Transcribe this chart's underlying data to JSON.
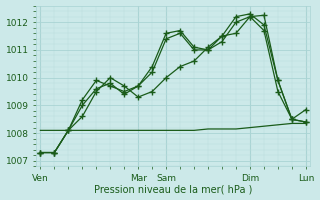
{
  "xlabel": "Pression niveau de la mer( hPa )",
  "ylim": [
    1006.8,
    1012.6
  ],
  "yticks": [
    1007,
    1008,
    1009,
    1010,
    1011,
    1012
  ],
  "background_color": "#cce9e9",
  "grid_major_color": "#aad4d4",
  "grid_minor_color": "#bbdddd",
  "line_color": "#1a5c1a",
  "text_color": "#1a5c1a",
  "n_points": 20,
  "day_tick_positions": [
    0,
    7,
    9,
    15,
    19
  ],
  "day_labels": [
    "Ven",
    "Mar",
    "Sam",
    "Dim",
    "Lun"
  ],
  "series1": [
    1007.3,
    1007.3,
    1008.1,
    1008.6,
    1009.5,
    1010.0,
    1009.7,
    1009.3,
    1009.5,
    1010.0,
    1010.4,
    1010.6,
    1011.1,
    1011.5,
    1011.6,
    1012.2,
    1012.25,
    1009.9,
    1008.5,
    1008.85
  ],
  "series2": [
    1007.3,
    1007.3,
    1008.1,
    1009.2,
    1009.9,
    1009.7,
    1009.5,
    1009.7,
    1010.4,
    1011.6,
    1011.7,
    1011.1,
    1011.0,
    1011.5,
    1012.2,
    1012.3,
    1011.9,
    1009.9,
    1008.5,
    1008.4
  ],
  "series3": [
    1007.3,
    1007.3,
    1008.1,
    1009.0,
    1009.6,
    1009.8,
    1009.4,
    1009.7,
    1010.2,
    1011.4,
    1011.6,
    1011.0,
    1011.0,
    1011.3,
    1012.0,
    1012.2,
    1011.7,
    1009.5,
    1008.5,
    1008.4
  ],
  "series4": [
    1008.1,
    1008.1,
    1008.1,
    1008.1,
    1008.1,
    1008.1,
    1008.1,
    1008.1,
    1008.1,
    1008.1,
    1008.1,
    1008.1,
    1008.15,
    1008.15,
    1008.15,
    1008.2,
    1008.25,
    1008.3,
    1008.35,
    1008.35
  ]
}
